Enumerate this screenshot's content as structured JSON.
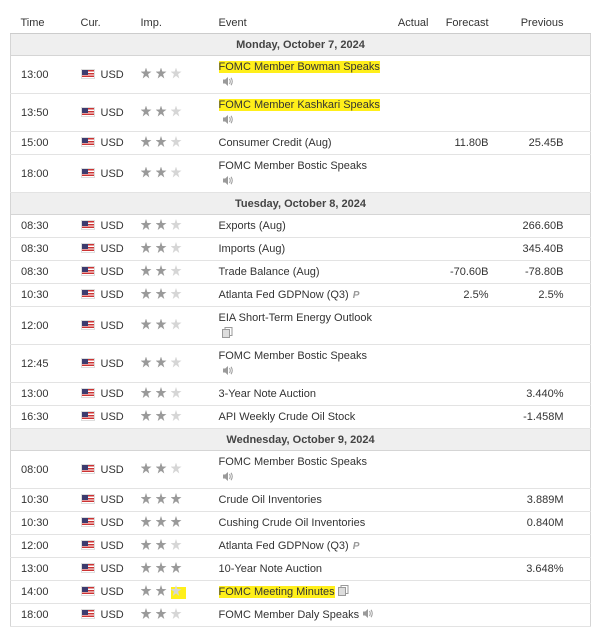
{
  "header": {
    "columns": [
      "Time",
      "Cur.",
      "Imp.",
      "Event",
      "Actual",
      "Forecast",
      "Previous"
    ]
  },
  "days": [
    {
      "date": "Monday, October 7, 2024",
      "events": [
        {
          "time": "13:00",
          "currency": "USD",
          "event": "FOMC Member Bowman Speaks"
        },
        {
          "time": "13:50",
          "currency": "USD",
          "event": "FOMC Member Kashkari Speaks"
        },
        {
          "time": "15:00",
          "currency": "USD",
          "event": "Consumer Credit (Aug)",
          "forecast": "11.80B",
          "previous": "25.45B"
        },
        {
          "time": "18:00",
          "currency": "USD",
          "event": "FOMC Member Bostic Speaks"
        }
      ]
    },
    {
      "date": "Tuesday, October 8, 2024",
      "events": [
        {
          "time": "08:30",
          "currency": "USD",
          "event": "Exports (Aug)",
          "previous": "266.60B"
        },
        {
          "time": "08:30",
          "currency": "USD",
          "event": "Imports (Aug)",
          "previous": "345.40B"
        },
        {
          "time": "08:30",
          "currency": "USD",
          "event": "Trade Balance (Aug)",
          "forecast": "-70.60B",
          "previous": "-78.80B"
        },
        {
          "time": "10:30",
          "currency": "USD",
          "event": "Atlanta Fed GDPNow (Q3)",
          "tag": "P",
          "forecast": "2.5%",
          "previous": "2.5%"
        },
        {
          "time": "12:00",
          "currency": "USD",
          "event": "EIA Short-Term Energy Outlook"
        },
        {
          "time": "12:45",
          "currency": "USD",
          "event": "FOMC Member Bostic Speaks"
        },
        {
          "time": "13:00",
          "currency": "USD",
          "event": "3-Year Note Auction",
          "previous": "3.440%"
        },
        {
          "time": "16:30",
          "currency": "USD",
          "event": "API Weekly Crude Oil Stock",
          "previous": "-1.458M"
        }
      ]
    },
    {
      "date": "Wednesday, October 9, 2024",
      "events": [
        {
          "time": "08:00",
          "currency": "USD",
          "event": "FOMC Member Bostic Speaks"
        },
        {
          "time": "10:30",
          "currency": "USD",
          "event": "Crude Oil Inventories",
          "previous": "3.889M"
        },
        {
          "time": "10:30",
          "currency": "USD",
          "event": "Cushing Crude Oil Inventories",
          "previous": "0.840M"
        },
        {
          "time": "12:00",
          "currency": "USD",
          "event": "Atlanta Fed GDPNow (Q3)",
          "tag": "P"
        },
        {
          "time": "13:00",
          "currency": "USD",
          "event": "10-Year Note Auction",
          "previous": "3.648%"
        },
        {
          "time": "14:00",
          "currency": "USD",
          "event": "FOMC Meeting Minutes"
        },
        {
          "time": "18:00",
          "currency": "USD",
          "event": "FOMC Member Daly Speaks"
        }
      ]
    }
  ]
}
